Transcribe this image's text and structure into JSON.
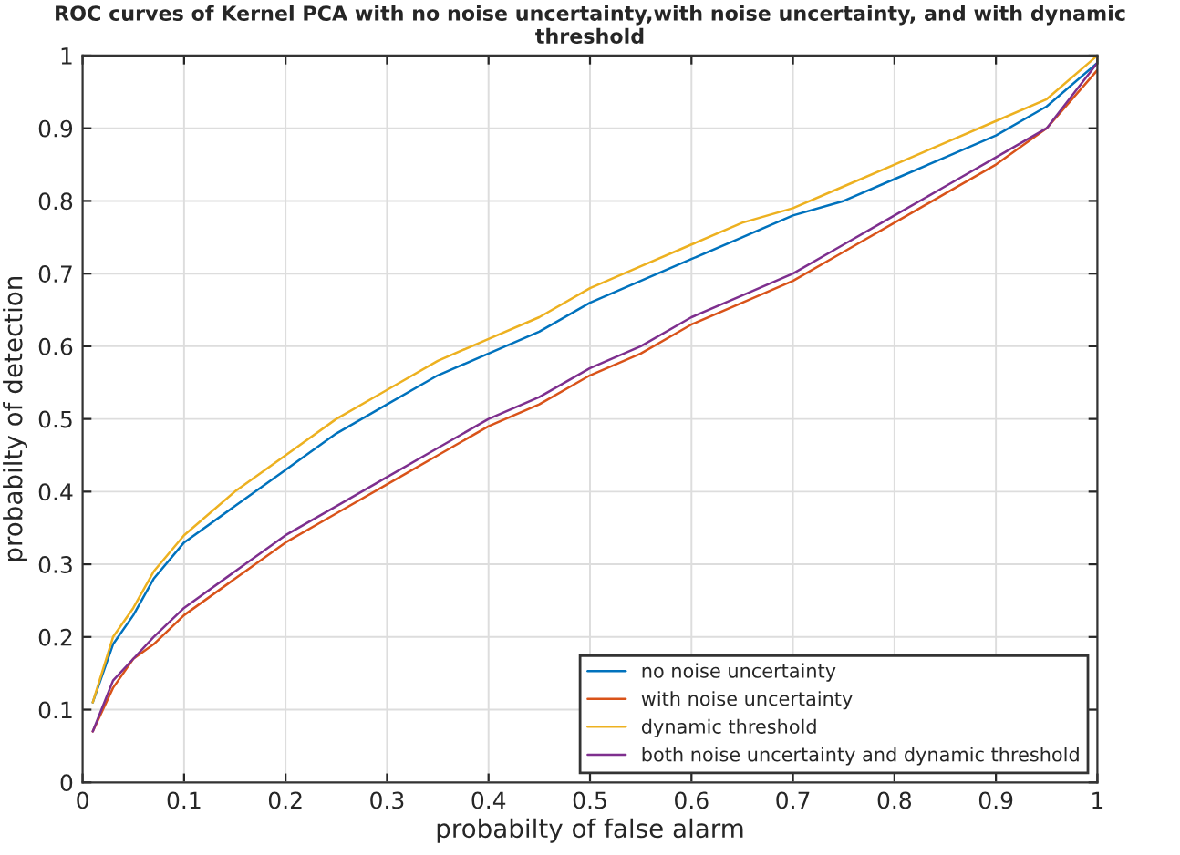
{
  "chart_data": {
    "type": "line",
    "title": "ROC curves of Kernel PCA with no noise uncertainty,with noise uncertainty, and with dynamic threshold",
    "xlabel": "probabilty of false alarm",
    "ylabel": "probabilty of detection",
    "x": [
      0.01,
      0.03,
      0.05,
      0.07,
      0.1,
      0.15,
      0.2,
      0.25,
      0.3,
      0.35,
      0.4,
      0.45,
      0.5,
      0.55,
      0.6,
      0.65,
      0.7,
      0.75,
      0.8,
      0.85,
      0.9,
      0.95,
      1
    ],
    "series": [
      {
        "name": "no noise uncertainty",
        "color": "#0072bd",
        "values": [
          0.11,
          0.19,
          0.23,
          0.28,
          0.33,
          0.38,
          0.43,
          0.48,
          0.52,
          0.56,
          0.59,
          0.62,
          0.66,
          0.69,
          0.72,
          0.75,
          0.78,
          0.8,
          0.83,
          0.86,
          0.89,
          0.93,
          0.99
        ]
      },
      {
        "name": "with noise uncertainty",
        "color": "#d95319",
        "values": [
          0.07,
          0.13,
          0.17,
          0.19,
          0.23,
          0.28,
          0.33,
          0.37,
          0.41,
          0.45,
          0.49,
          0.52,
          0.56,
          0.59,
          0.63,
          0.66,
          0.69,
          0.73,
          0.77,
          0.81,
          0.85,
          0.9,
          0.98
        ]
      },
      {
        "name": "dynamic threshold",
        "color": "#edb120",
        "values": [
          0.11,
          0.2,
          0.24,
          0.29,
          0.34,
          0.4,
          0.45,
          0.5,
          0.54,
          0.58,
          0.61,
          0.64,
          0.68,
          0.71,
          0.74,
          0.77,
          0.79,
          0.82,
          0.85,
          0.88,
          0.91,
          0.94,
          1
        ]
      },
      {
        "name": "both noise uncertainty and dynamic threshold",
        "color": "#7e2f8e",
        "values": [
          0.07,
          0.14,
          0.17,
          0.2,
          0.24,
          0.29,
          0.34,
          0.38,
          0.42,
          0.46,
          0.5,
          0.53,
          0.57,
          0.6,
          0.64,
          0.67,
          0.7,
          0.74,
          0.78,
          0.82,
          0.86,
          0.9,
          0.99
        ]
      }
    ],
    "xlim": [
      0,
      1
    ],
    "ylim": [
      0,
      1
    ],
    "xticks": [
      0,
      0.1,
      0.2,
      0.3,
      0.4,
      0.5,
      0.6,
      0.7,
      0.8,
      0.9,
      1
    ],
    "yticks": [
      0,
      0.1,
      0.2,
      0.3,
      0.4,
      0.5,
      0.6,
      0.7,
      0.8,
      0.9,
      1
    ],
    "grid": true,
    "legend": "bottom right",
    "marker": "none",
    "line_style": "solid"
  }
}
